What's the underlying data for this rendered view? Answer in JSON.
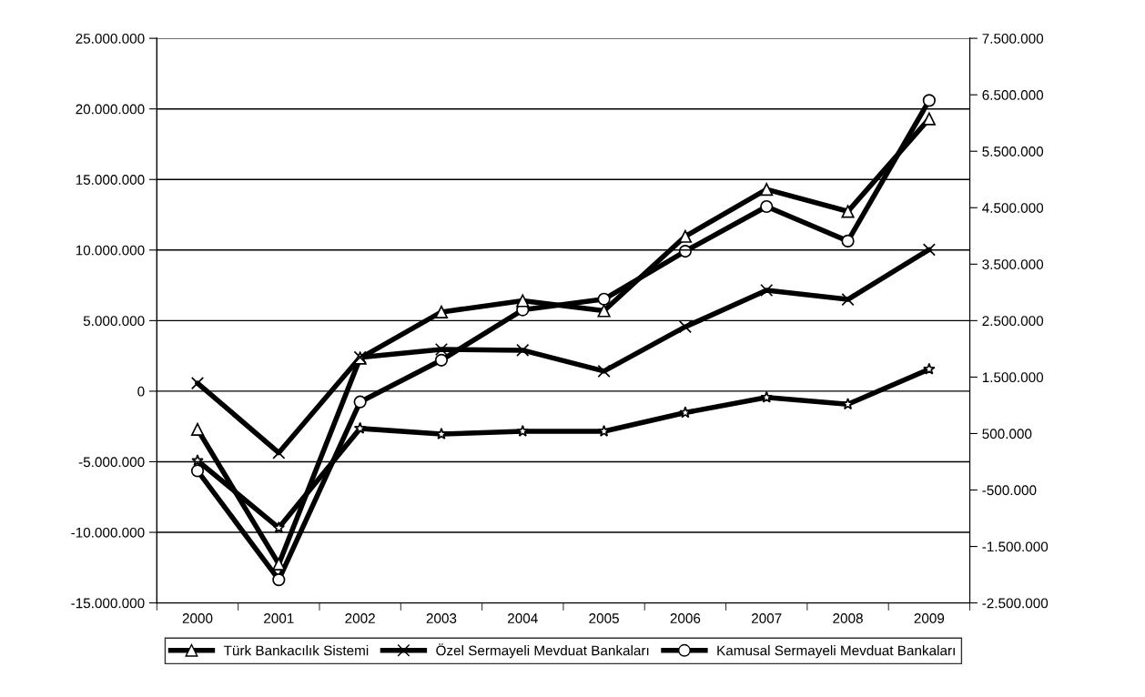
{
  "chart_data": {
    "type": "line",
    "categories": [
      "2000",
      "2001",
      "2002",
      "2003",
      "2004",
      "2005",
      "2006",
      "2007",
      "2008",
      "2009"
    ],
    "series": [
      {
        "name": "Türk Bankacılık Sistemi",
        "color": "#000000",
        "marker": "triangle",
        "values": [
          -2700000,
          -12250000,
          2340000,
          5610000,
          6410000,
          5700000,
          10970000,
          14300000,
          12740000,
          19300000
        ]
      },
      {
        "name": "Özel Sermayeli Mevduat Bankaları",
        "color": "#000000",
        "marker": "cross",
        "values": [
          570000,
          -4360000,
          2400000,
          2960000,
          2900000,
          1420000,
          4560000,
          7150000,
          6500000,
          10030000
        ]
      },
      {
        "name": "Kamusal Sermayeli Mevduat Bankaları",
        "color": "#000000",
        "marker": "circle",
        "axis": "y2",
        "values": [
          -160000,
          -2090000,
          1060000,
          1800000,
          2690000,
          2880000,
          3730000,
          4520000,
          3910000,
          6400000
        ]
      },
      {
        "color": "#000000",
        "marker": "star",
        "axis": "y2",
        "values": [
          20000,
          -1170000,
          590000,
          490000,
          540000,
          540000,
          870000,
          1140000,
          1020000,
          1640000
        ]
      }
    ],
    "ylim": [
      -15000000,
      25000000
    ],
    "yticks": [
      {
        "value": -15000000,
        "label": "-15.000.000"
      },
      {
        "value": -10000000,
        "label": "-10.000.000"
      },
      {
        "value": -5000000,
        "label": "-5.000.000"
      },
      0,
      {
        "value": 5000000,
        "label": "5.000.000"
      },
      {
        "value": 10000000,
        "label": "10.000.000"
      },
      {
        "value": 15000000,
        "label": "15.000.000"
      },
      {
        "value": 20000000,
        "label": "20.000.000"
      },
      {
        "value": 25000000,
        "label": "25.000.000"
      }
    ],
    "y2lim": [
      -2500000,
      7500000
    ],
    "y2ticks": [
      {
        "value": -2500000,
        "label": "-2.500.000"
      },
      {
        "value": -1500000,
        "label": "-1.500.000"
      },
      {
        "value": -500000,
        "label": "-500.000"
      },
      {
        "value": 500000,
        "label": "500.000"
      },
      {
        "value": 1500000,
        "label": "1.500.000"
      },
      {
        "value": 2500000,
        "label": "2.500.000"
      },
      {
        "value": 3500000,
        "label": "3.500.000"
      },
      {
        "value": 4500000,
        "label": "4.500.000"
      },
      {
        "value": 5500000,
        "label": "5.500.000"
      },
      {
        "value": 6500000,
        "label": "6.500.000"
      },
      {
        "value": 7500000,
        "label": "7.500.000"
      }
    ],
    "grid": "y",
    "legend": "bottom",
    "line_style": "solid"
  }
}
